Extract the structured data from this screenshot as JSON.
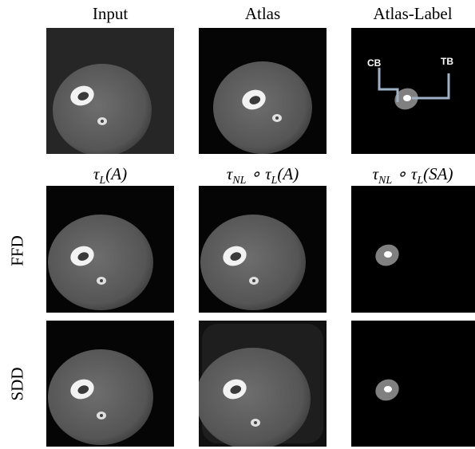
{
  "column_headers": [
    "Input",
    "Atlas",
    "Atlas-Label"
  ],
  "transform_headers": [
    [
      {
        "text": "τ"
      },
      {
        "text": "L",
        "subscript": true
      },
      {
        "text": "(A)"
      }
    ],
    [
      {
        "text": "τ"
      },
      {
        "text": "NL",
        "subscript": true
      },
      {
        "text": " ∘ τ"
      },
      {
        "text": "L",
        "subscript": true
      },
      {
        "text": "(A)"
      }
    ],
    [
      {
        "text": "τ"
      },
      {
        "text": "NL",
        "subscript": true
      },
      {
        "text": " ∘ τ"
      },
      {
        "text": "L",
        "subscript": true
      },
      {
        "text": "(SA)"
      }
    ]
  ],
  "row_labels": [
    "FFD",
    "SDD"
  ],
  "annotations": [
    "CB",
    "TB"
  ]
}
